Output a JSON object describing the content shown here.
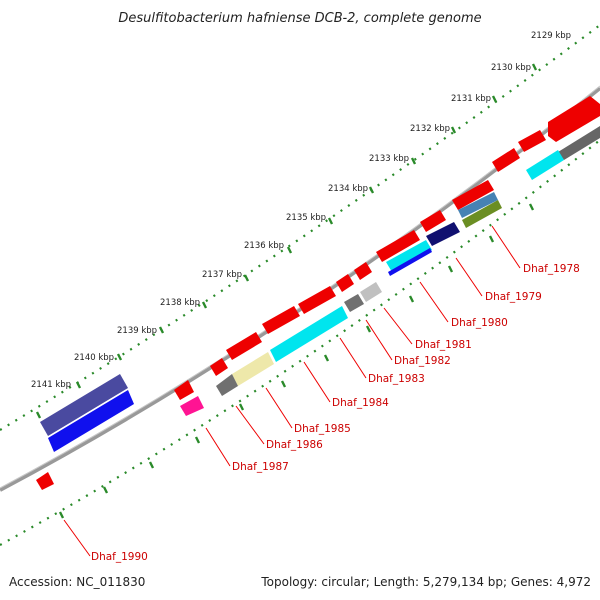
{
  "title": "Desulfitobacterium hafniense DCB-2, complete genome",
  "footer": {
    "accession": "Accession: NC_011830",
    "summary": "Topology: circular; Length: 5,279,134 bp; Genes: 4,972"
  },
  "ticks": [
    "2129 kbp",
    "2130 kbp",
    "2131 kbp",
    "2132 kbp",
    "2133 kbp",
    "2134 kbp",
    "2135 kbp",
    "2136 kbp",
    "2137 kbp",
    "2138 kbp",
    "2139 kbp",
    "2140 kbp",
    "2141 kbp"
  ],
  "genes": [
    "Dhaf_1978",
    "Dhaf_1979",
    "Dhaf_1980",
    "Dhaf_1981",
    "Dhaf_1982",
    "Dhaf_1983",
    "Dhaf_1984",
    "Dhaf_1985",
    "Dhaf_1986",
    "Dhaf_1987",
    "Dhaf_1990"
  ],
  "colors": {
    "cds": "#ee0000",
    "backbone": "#888888",
    "tick_dots": "#2a8a2a",
    "gene_label": "#cc0000",
    "cyan": "#00e5ee",
    "navy": "#1a1a80",
    "slate": "#4a4aa0",
    "blue": "#1010ee",
    "olive": "#6b8e23",
    "steel": "#4682b4",
    "gray": "#707070",
    "light_gray": "#c0c0c0",
    "khaki": "#eee8aa",
    "pink": "#ff1493"
  }
}
